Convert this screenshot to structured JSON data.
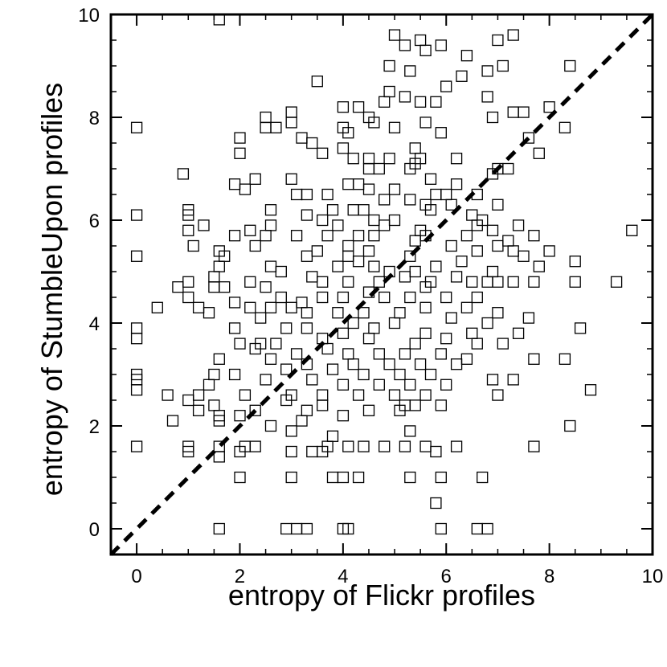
{
  "chart_data": {
    "type": "scatter",
    "xlabel": "entropy of Flickr profiles",
    "ylabel": "entropy of StumbleUpon profiles",
    "xlim": [
      -0.5,
      10
    ],
    "ylim": [
      -0.5,
      10
    ],
    "xticks": [
      "0",
      "2",
      "4",
      "6",
      "8",
      "10"
    ],
    "yticks": [
      "0",
      "2",
      "4",
      "6",
      "8",
      "10"
    ],
    "marker": "open-square",
    "reference_line": {
      "style": "dashed",
      "from": [
        -0.5,
        -0.5
      ],
      "to": [
        10,
        10
      ]
    },
    "grid": false,
    "points": [
      [
        1.6,
        9.9
      ],
      [
        5.0,
        9.6
      ],
      [
        5.5,
        9.5
      ],
      [
        5.2,
        9.4
      ],
      [
        5.9,
        9.4
      ],
      [
        5.6,
        9.3
      ],
      [
        7.0,
        9.5
      ],
      [
        7.3,
        9.6
      ],
      [
        4.9,
        9.0
      ],
      [
        5.3,
        8.9
      ],
      [
        6.4,
        9.2
      ],
      [
        7.1,
        9.0
      ],
      [
        8.4,
        9.0
      ],
      [
        6.8,
        8.9
      ],
      [
        6.3,
        8.8
      ],
      [
        3.5,
        8.7
      ],
      [
        4.9,
        8.5
      ],
      [
        6.0,
        8.6
      ],
      [
        5.5,
        8.3
      ],
      [
        5.2,
        8.4
      ],
      [
        4.0,
        8.2
      ],
      [
        4.3,
        8.2
      ],
      [
        4.8,
        8.3
      ],
      [
        5.8,
        8.3
      ],
      [
        6.8,
        8.4
      ],
      [
        7.3,
        8.1
      ],
      [
        7.5,
        8.1
      ],
      [
        8.0,
        8.2
      ],
      [
        3.0,
        8.1
      ],
      [
        2.5,
        8.0
      ],
      [
        4.5,
        8.0
      ],
      [
        6.9,
        8.0
      ],
      [
        8.3,
        7.8
      ],
      [
        0.0,
        7.8
      ],
      [
        2.5,
        7.8
      ],
      [
        2.7,
        7.8
      ],
      [
        3.0,
        7.9
      ],
      [
        3.2,
        7.6
      ],
      [
        3.4,
        7.5
      ],
      [
        4.0,
        7.8
      ],
      [
        4.1,
        7.7
      ],
      [
        4.6,
        7.9
      ],
      [
        5.0,
        7.8
      ],
      [
        5.6,
        7.9
      ],
      [
        5.9,
        7.7
      ],
      [
        7.6,
        7.6
      ],
      [
        2.0,
        7.6
      ],
      [
        2.0,
        7.3
      ],
      [
        3.6,
        7.3
      ],
      [
        4.0,
        7.4
      ],
      [
        4.2,
        7.2
      ],
      [
        4.5,
        7.2
      ],
      [
        4.9,
        7.2
      ],
      [
        5.4,
        7.4
      ],
      [
        5.5,
        7.2
      ],
      [
        6.2,
        7.2
      ],
      [
        7.8,
        7.3
      ],
      [
        0.9,
        6.9
      ],
      [
        2.3,
        6.8
      ],
      [
        3.0,
        6.8
      ],
      [
        4.5,
        7.0
      ],
      [
        4.7,
        7.0
      ],
      [
        5.3,
        7.0
      ],
      [
        5.4,
        7.1
      ],
      [
        5.7,
        6.8
      ],
      [
        6.9,
        6.9
      ],
      [
        7.0,
        7.0
      ],
      [
        7.2,
        7.0
      ],
      [
        1.9,
        6.7
      ],
      [
        2.1,
        6.6
      ],
      [
        3.1,
        6.5
      ],
      [
        3.3,
        6.5
      ],
      [
        3.7,
        6.5
      ],
      [
        4.1,
        6.7
      ],
      [
        4.3,
        6.7
      ],
      [
        4.5,
        6.6
      ],
      [
        5.0,
        6.6
      ],
      [
        5.3,
        6.4
      ],
      [
        5.8,
        6.5
      ],
      [
        6.2,
        6.7
      ],
      [
        6.6,
        6.5
      ],
      [
        4.8,
        6.4
      ],
      [
        5.6,
        6.3
      ],
      [
        6.0,
        6.5
      ],
      [
        6.1,
        6.3
      ],
      [
        7.0,
        6.3
      ],
      [
        1.0,
        6.2
      ],
      [
        1.0,
        6.1
      ],
      [
        2.6,
        6.2
      ],
      [
        3.8,
        6.2
      ],
      [
        4.2,
        6.2
      ],
      [
        4.4,
        6.2
      ],
      [
        5.7,
        6.2
      ],
      [
        6.5,
        6.1
      ],
      [
        0.0,
        6.1
      ],
      [
        3.3,
        6.1
      ],
      [
        3.6,
        6.0
      ],
      [
        4.6,
        6.0
      ],
      [
        5.0,
        6.0
      ],
      [
        6.7,
        6.0
      ],
      [
        1.3,
        5.9
      ],
      [
        2.6,
        5.9
      ],
      [
        3.9,
        5.9
      ],
      [
        4.8,
        5.9
      ],
      [
        5.5,
        5.8
      ],
      [
        6.6,
        5.9
      ],
      [
        6.9,
        5.8
      ],
      [
        7.4,
        5.9
      ],
      [
        1.0,
        5.8
      ],
      [
        1.9,
        5.7
      ],
      [
        2.2,
        5.8
      ],
      [
        2.5,
        5.7
      ],
      [
        3.1,
        5.7
      ],
      [
        3.7,
        5.7
      ],
      [
        4.3,
        5.7
      ],
      [
        4.6,
        5.7
      ],
      [
        5.6,
        5.7
      ],
      [
        6.4,
        5.7
      ],
      [
        7.2,
        5.6
      ],
      [
        7.7,
        5.7
      ],
      [
        9.6,
        5.8
      ],
      [
        1.1,
        5.5
      ],
      [
        1.6,
        5.4
      ],
      [
        2.3,
        5.5
      ],
      [
        3.5,
        5.4
      ],
      [
        4.1,
        5.5
      ],
      [
        4.5,
        5.4
      ],
      [
        5.4,
        5.6
      ],
      [
        6.1,
        5.5
      ],
      [
        6.6,
        5.4
      ],
      [
        7.0,
        5.5
      ],
      [
        7.3,
        5.4
      ],
      [
        8.0,
        5.4
      ],
      [
        0.0,
        5.3
      ],
      [
        1.7,
        5.3
      ],
      [
        3.3,
        5.3
      ],
      [
        4.1,
        5.3
      ],
      [
        5.3,
        5.3
      ],
      [
        5.8,
        5.1
      ],
      [
        7.5,
        5.3
      ],
      [
        1.6,
        5.1
      ],
      [
        2.6,
        5.1
      ],
      [
        2.8,
        5.0
      ],
      [
        3.9,
        5.1
      ],
      [
        4.3,
        5.2
      ],
      [
        4.6,
        5.1
      ],
      [
        4.9,
        5.0
      ],
      [
        5.4,
        5.0
      ],
      [
        6.3,
        5.2
      ],
      [
        6.9,
        5.0
      ],
      [
        7.8,
        5.1
      ],
      [
        8.5,
        5.2
      ],
      [
        1.5,
        4.9
      ],
      [
        2.2,
        4.8
      ],
      [
        3.4,
        4.9
      ],
      [
        3.6,
        4.8
      ],
      [
        4.1,
        4.8
      ],
      [
        4.7,
        4.8
      ],
      [
        5.2,
        4.9
      ],
      [
        5.7,
        4.8
      ],
      [
        6.2,
        4.9
      ],
      [
        6.5,
        4.8
      ],
      [
        7.0,
        4.8
      ],
      [
        7.7,
        4.8
      ],
      [
        8.5,
        4.8
      ],
      [
        9.3,
        4.8
      ],
      [
        0.8,
        4.7
      ],
      [
        1.0,
        4.8
      ],
      [
        1.5,
        4.7
      ],
      [
        1.7,
        4.7
      ],
      [
        2.5,
        4.7
      ],
      [
        4.5,
        4.6
      ],
      [
        5.6,
        4.7
      ],
      [
        6.8,
        4.8
      ],
      [
        7.3,
        4.8
      ],
      [
        1.0,
        4.5
      ],
      [
        1.9,
        4.4
      ],
      [
        2.8,
        4.5
      ],
      [
        3.2,
        4.4
      ],
      [
        3.6,
        4.5
      ],
      [
        4.0,
        4.5
      ],
      [
        4.8,
        4.5
      ],
      [
        5.3,
        4.5
      ],
      [
        6.0,
        4.5
      ],
      [
        6.6,
        4.5
      ],
      [
        0.4,
        4.3
      ],
      [
        1.2,
        4.3
      ],
      [
        2.2,
        4.3
      ],
      [
        2.6,
        4.3
      ],
      [
        3.0,
        4.3
      ],
      [
        3.3,
        4.2
      ],
      [
        3.9,
        4.2
      ],
      [
        4.4,
        4.2
      ],
      [
        5.1,
        4.2
      ],
      [
        5.6,
        4.3
      ],
      [
        6.4,
        4.3
      ],
      [
        7.0,
        4.2
      ],
      [
        1.4,
        4.2
      ],
      [
        2.4,
        4.1
      ],
      [
        4.2,
        4.0
      ],
      [
        5.0,
        4.0
      ],
      [
        6.1,
        4.1
      ],
      [
        6.8,
        4.0
      ],
      [
        7.6,
        4.1
      ],
      [
        0.0,
        3.9
      ],
      [
        1.9,
        3.9
      ],
      [
        2.9,
        3.9
      ],
      [
        3.3,
        3.9
      ],
      [
        4.0,
        3.8
      ],
      [
        4.6,
        3.9
      ],
      [
        5.6,
        3.8
      ],
      [
        6.5,
        3.8
      ],
      [
        7.4,
        3.8
      ],
      [
        8.6,
        3.9
      ],
      [
        0.0,
        3.7
      ],
      [
        2.4,
        3.6
      ],
      [
        2.7,
        3.6
      ],
      [
        3.6,
        3.7
      ],
      [
        4.5,
        3.7
      ],
      [
        5.4,
        3.6
      ],
      [
        6.0,
        3.7
      ],
      [
        6.6,
        3.6
      ],
      [
        7.1,
        3.6
      ],
      [
        2.0,
        3.6
      ],
      [
        2.3,
        3.5
      ],
      [
        3.1,
        3.4
      ],
      [
        3.7,
        3.5
      ],
      [
        4.1,
        3.4
      ],
      [
        4.7,
        3.4
      ],
      [
        5.2,
        3.4
      ],
      [
        5.9,
        3.4
      ],
      [
        6.4,
        3.3
      ],
      [
        1.6,
        3.3
      ],
      [
        2.6,
        3.3
      ],
      [
        3.3,
        3.2
      ],
      [
        4.2,
        3.2
      ],
      [
        4.9,
        3.2
      ],
      [
        5.5,
        3.2
      ],
      [
        6.2,
        3.2
      ],
      [
        7.7,
        3.3
      ],
      [
        8.3,
        3.3
      ],
      [
        2.9,
        3.1
      ],
      [
        3.8,
        3.1
      ],
      [
        4.4,
        3.0
      ],
      [
        5.1,
        3.0
      ],
      [
        5.7,
        3.0
      ],
      [
        0.0,
        3.0
      ],
      [
        0.0,
        2.9
      ],
      [
        1.5,
        3.0
      ],
      [
        1.9,
        3.0
      ],
      [
        2.5,
        2.9
      ],
      [
        3.4,
        2.9
      ],
      [
        4.0,
        2.8
      ],
      [
        4.7,
        2.8
      ],
      [
        5.3,
        2.8
      ],
      [
        6.0,
        2.8
      ],
      [
        6.9,
        2.9
      ],
      [
        7.3,
        2.9
      ],
      [
        0.0,
        2.7
      ],
      [
        1.4,
        2.8
      ],
      [
        2.1,
        2.6
      ],
      [
        3.0,
        2.6
      ],
      [
        3.6,
        2.6
      ],
      [
        4.3,
        2.6
      ],
      [
        5.0,
        2.6
      ],
      [
        5.6,
        2.6
      ],
      [
        7.0,
        2.6
      ],
      [
        8.8,
        2.7
      ],
      [
        0.6,
        2.6
      ],
      [
        1.2,
        2.6
      ],
      [
        2.9,
        2.5
      ],
      [
        3.6,
        2.4
      ],
      [
        5.2,
        2.4
      ],
      [
        5.9,
        2.4
      ],
      [
        1.0,
        2.5
      ],
      [
        1.5,
        2.4
      ],
      [
        2.3,
        2.3
      ],
      [
        3.3,
        2.3
      ],
      [
        4.5,
        2.3
      ],
      [
        5.1,
        2.3
      ],
      [
        5.4,
        2.4
      ],
      [
        1.2,
        2.3
      ],
      [
        1.6,
        2.2
      ],
      [
        2.0,
        2.2
      ],
      [
        3.2,
        2.1
      ],
      [
        4.0,
        2.2
      ],
      [
        0.7,
        2.1
      ],
      [
        1.6,
        2.1
      ],
      [
        2.6,
        2.0
      ],
      [
        3.0,
        1.9
      ],
      [
        3.8,
        1.8
      ],
      [
        5.3,
        1.9
      ],
      [
        8.4,
        2.0
      ],
      [
        1.0,
        1.6
      ],
      [
        0.0,
        1.6
      ],
      [
        1.6,
        1.6
      ],
      [
        2.1,
        1.6
      ],
      [
        2.3,
        1.6
      ],
      [
        3.0,
        1.5
      ],
      [
        3.4,
        1.5
      ],
      [
        3.7,
        1.6
      ],
      [
        4.4,
        1.6
      ],
      [
        4.8,
        1.6
      ],
      [
        5.6,
        1.6
      ],
      [
        6.2,
        1.6
      ],
      [
        7.7,
        1.6
      ],
      [
        1.0,
        1.5
      ],
      [
        1.6,
        1.4
      ],
      [
        2.0,
        1.5
      ],
      [
        3.6,
        1.5
      ],
      [
        4.1,
        1.6
      ],
      [
        5.2,
        1.6
      ],
      [
        5.8,
        1.5
      ],
      [
        2.0,
        1.0
      ],
      [
        3.0,
        1.0
      ],
      [
        3.8,
        1.0
      ],
      [
        4.0,
        1.0
      ],
      [
        4.3,
        1.0
      ],
      [
        5.3,
        1.0
      ],
      [
        5.9,
        1.0
      ],
      [
        6.7,
        1.0
      ],
      [
        5.8,
        0.5
      ],
      [
        1.6,
        0.0
      ],
      [
        2.9,
        0.0
      ],
      [
        3.1,
        0.0
      ],
      [
        3.3,
        0.0
      ],
      [
        4.0,
        0.0
      ],
      [
        4.1,
        0.0
      ],
      [
        5.9,
        0.0
      ],
      [
        6.6,
        0.0
      ],
      [
        6.8,
        0.0
      ]
    ]
  }
}
